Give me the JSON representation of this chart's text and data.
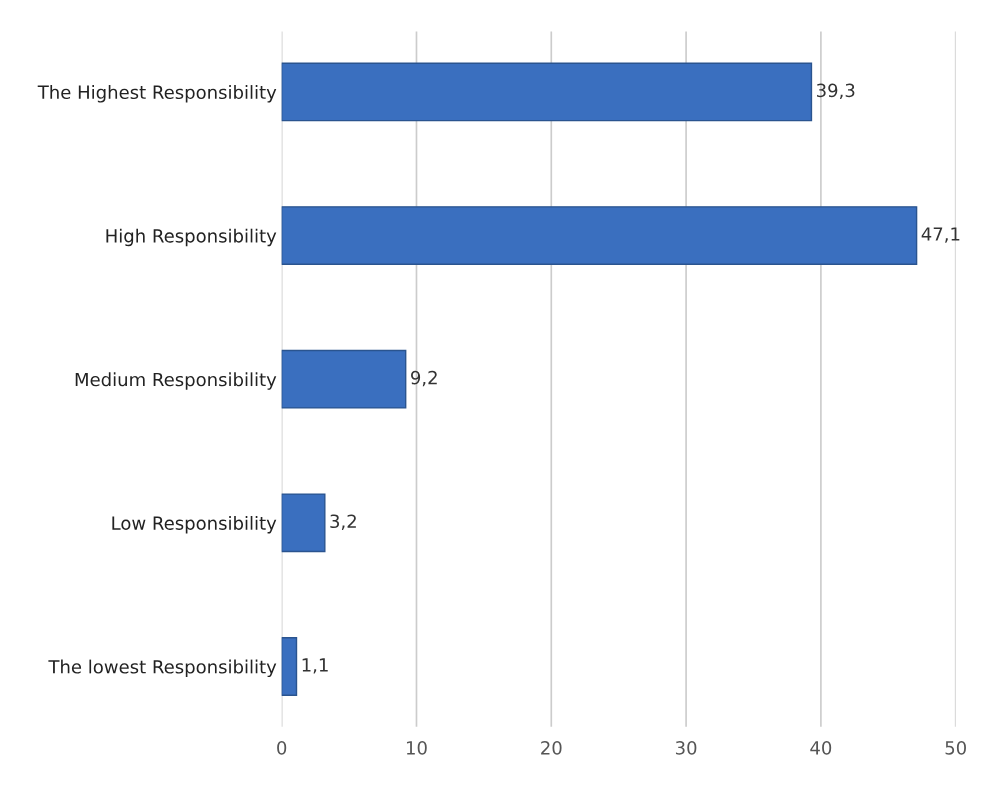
{
  "chart_data": {
    "type": "bar",
    "orientation": "horizontal",
    "categories": [
      "The Highest Responsibility",
      "High Responsibility",
      "Medium Responsibility",
      "Low Responsibility",
      "The lowest Responsibility"
    ],
    "values": [
      39.3,
      47.1,
      9.2,
      3.2,
      1.1
    ],
    "value_labels": [
      "39,3",
      "47,1",
      "9,2",
      "3,2",
      "1,1"
    ],
    "color": "#3a6fbf",
    "xlim": [
      0,
      50
    ],
    "xticks": [
      0,
      10,
      20,
      30,
      40,
      50
    ],
    "grid": "x"
  }
}
